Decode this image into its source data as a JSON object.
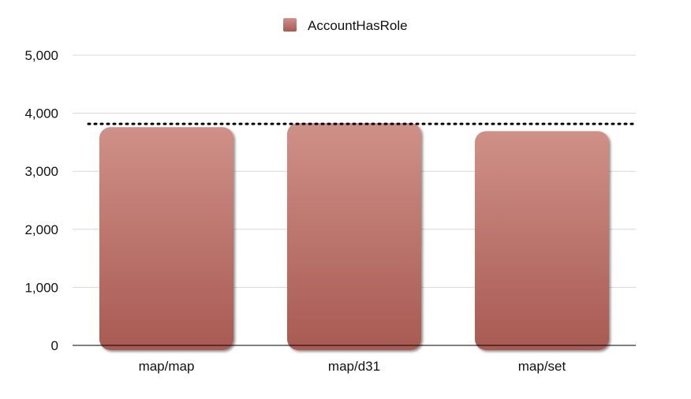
{
  "chart_data": {
    "type": "bar",
    "categories": [
      "map/map",
      "map/d31",
      "map/set"
    ],
    "series": [
      {
        "name": "AccountHasRole",
        "values": [
          3760,
          3830,
          3690
        ]
      }
    ],
    "ylim": [
      0,
      5000
    ],
    "yticks": [
      0,
      1000,
      2000,
      3000,
      4000,
      5000
    ],
    "ytick_labels": [
      "0",
      "1,000",
      "2,000",
      "3,000",
      "4,000",
      "5,000"
    ],
    "reference_line": 3830,
    "grid": true,
    "legend_position": "top-center",
    "colors": {
      "bar_top": "#cf9088",
      "bar_bottom": "#a85a52",
      "grid": "#d8d8d8",
      "axis": "#000000",
      "reference_line": "#000000"
    }
  }
}
